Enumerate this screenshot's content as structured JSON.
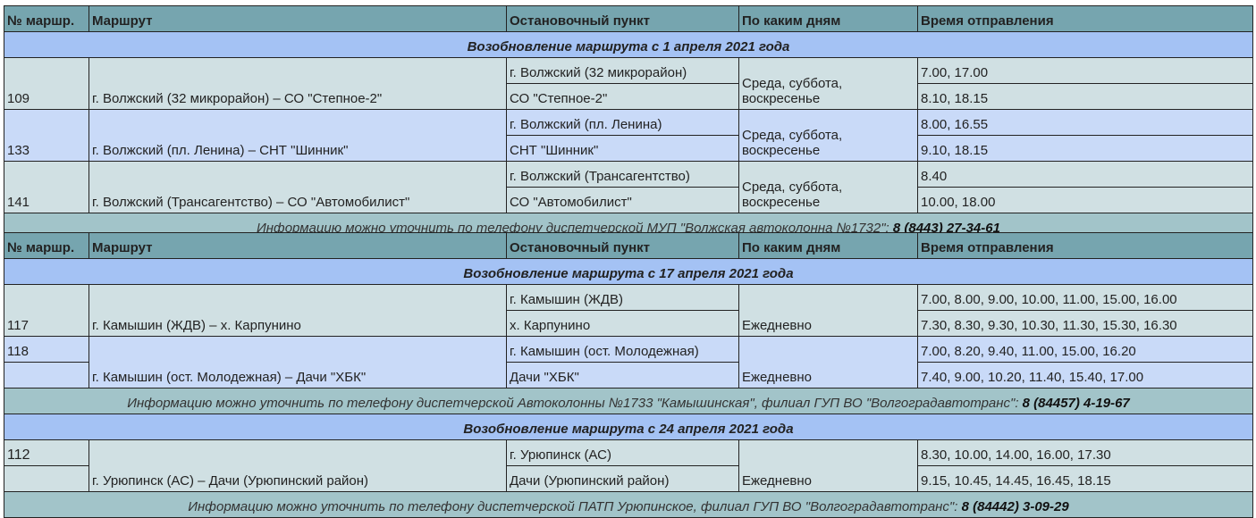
{
  "headers": [
    "№ маршр.",
    "Маршрут",
    "Остановочный пункт",
    "По каким дням",
    "Время отправления"
  ],
  "table1": {
    "section": "Возобновление маршрута с 1 апреля 2021 года",
    "routes": [
      {
        "num": "109",
        "route": "г. Волжский (32 микрорайон) – СО \"Степное-2\"",
        "stops": [
          "г. Волжский (32 микрорайон)",
          "СО \"Степное-2\""
        ],
        "days": "Среда, суббота, воскресенье",
        "times": [
          "7.00, 17.00",
          "8.10, 18.15"
        ]
      },
      {
        "num": "133",
        "route": "г. Волжский (пл. Ленина) – СНТ \"Шинник\"",
        "stops": [
          "г. Волжский (пл. Ленина)",
          "СНТ \"Шинник\""
        ],
        "days": "Среда, суббота, воскресенье",
        "times": [
          "8.00, 16.55",
          "9.10, 18.15"
        ]
      },
      {
        "num": "141",
        "route": "г. Волжский (Трансагентство) – СО \"Автомобилист\"",
        "stops": [
          "г. Волжский (Трансагентство)",
          "СО \"Автомобилист\""
        ],
        "days": "Среда, суббота, воскресенье",
        "times": [
          "8.40",
          "10.00, 18.00"
        ]
      }
    ],
    "footer": {
      "text": "Информацию можно уточнить по телефону диспетчерской МУП \"Волжская автоколонна №1732\": ",
      "phone": "8 (8443) 27-34-61"
    }
  },
  "table2": {
    "section1": "Возобновление маршрута с 17 апреля 2021 года",
    "routes1": [
      {
        "num": "117",
        "route": "г. Камышин (ЖДВ) – х. Карпунино",
        "stops": [
          "г. Камышин (ЖДВ)",
          "х. Карпунино"
        ],
        "days": "Ежедневно",
        "times": [
          "7.00, 8.00, 9.00, 10.00, 11.00, 15.00, 16.00",
          "7.30, 8.30, 9.30, 10.30, 11.30, 15.30, 16.30"
        ]
      },
      {
        "num": "118",
        "route": "г. Камышин (ост. Молодежная) – Дачи \"ХБК\"",
        "stops": [
          "г. Камышин (ост. Молодежная)",
          "Дачи \"ХБК\""
        ],
        "days": "Ежедневно",
        "times": [
          "7.00, 8.20, 9.40, 11.00, 15.00, 16.20",
          "7.40, 9.00, 10.20, 11.40, 15.40, 17.00"
        ]
      }
    ],
    "footer1": {
      "text": "Информацию можно уточнить по телефону диспетчерской Автоколонны №1733 \"Камышинская\", филиал ГУП ВО \"Волгоградавтотранс\": ",
      "phone": "8 (84457) 4-19-67"
    },
    "section2": "Возобновление маршрута с 24 апреля 2021 года",
    "route2": {
      "num": "112",
      "route": "г. Урюпинск (АС) – Дачи (Урюпинский район)",
      "stops": [
        "г. Урюпинск (АС)",
        "Дачи (Урюпинский район)"
      ],
      "days": "Ежедневно",
      "times": [
        "8.30, 10.00, 14.00, 16.00, 17.30",
        "9.15, 10.45, 14.45, 16.45, 18.15"
      ]
    },
    "footer2": {
      "text": "Информацию можно уточнить по телефону диспетчерской ПАТП Урюпинское, филиал ГУП ВО \"Волгоградавтотранс\": ",
      "phone": "8 (84442) 3-09-29"
    }
  },
  "colors": {
    "header": "#76a5af",
    "section": "#a4c2f4",
    "row_green": "#d0e0e3",
    "row_blue": "#c9daf8",
    "footer": "#a2c4c9"
  }
}
